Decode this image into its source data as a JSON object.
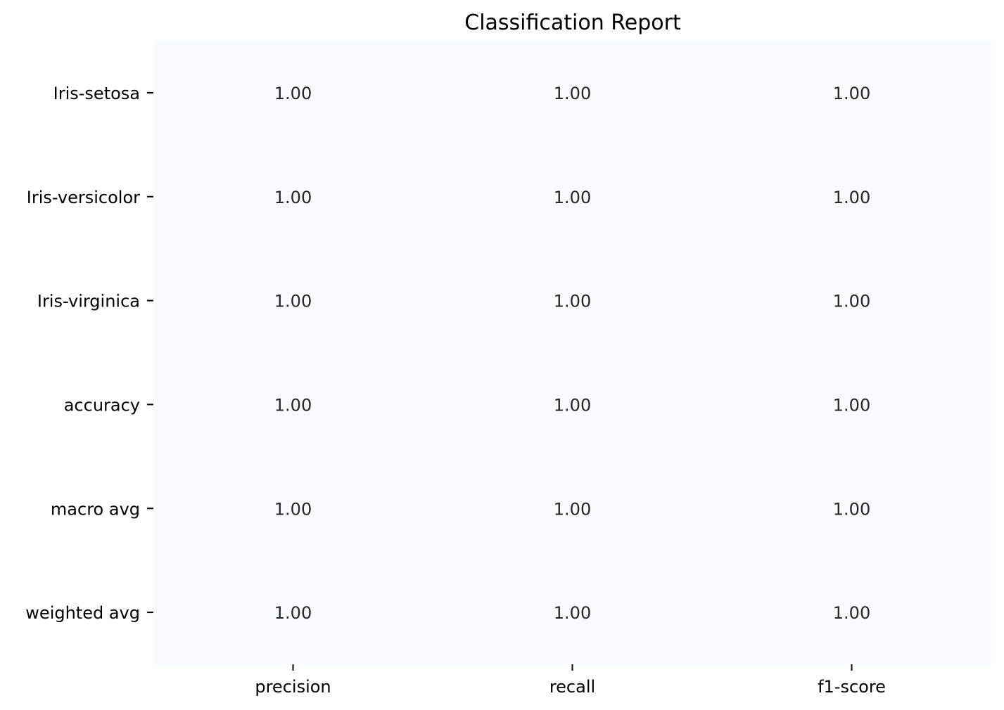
{
  "chart_data": {
    "type": "heatmap",
    "title": "Classification Report",
    "xlabel": "",
    "ylabel": "",
    "columns": [
      "precision",
      "recall",
      "f1-score"
    ],
    "rows": [
      "Iris-setosa",
      "Iris-versicolor",
      "Iris-virginica",
      "accuracy",
      "macro avg",
      "weighted avg"
    ],
    "values": [
      [
        1.0,
        1.0,
        1.0
      ],
      [
        1.0,
        1.0,
        1.0
      ],
      [
        1.0,
        1.0,
        1.0
      ],
      [
        1.0,
        1.0,
        1.0
      ],
      [
        1.0,
        1.0,
        1.0
      ],
      [
        1.0,
        1.0,
        1.0
      ]
    ],
    "value_format": "1.00",
    "colormap": "Blues",
    "cell_color": "#f7fbff",
    "annotation_color": "#262626",
    "colorbar": false,
    "grid": false
  }
}
